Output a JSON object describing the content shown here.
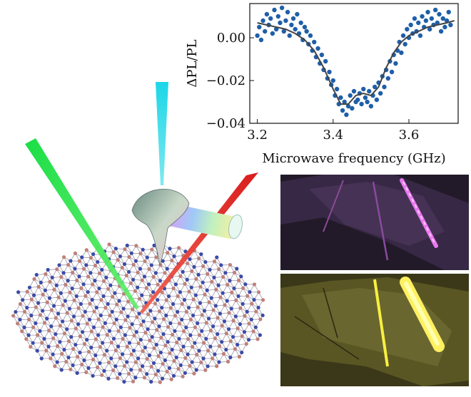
{
  "chart_data": {
    "type": "scatter",
    "xlabel": "Microwave frequency (GHz)",
    "ylabel": "ΔPL/PL",
    "xlim": [
      3.18,
      3.73
    ],
    "ylim": [
      -0.04,
      0.016
    ],
    "x_ticks": [
      3.2,
      3.4,
      3.6
    ],
    "x_tick_labels": [
      "3.2",
      "3.4",
      "3.6"
    ],
    "y_ticks": [
      0.0,
      -0.02,
      -0.04
    ],
    "y_tick_labels": [
      "0.00",
      "−0.02",
      "−0.04"
    ],
    "grid": false,
    "series": [
      {
        "kind": "points",
        "color": "#1f5fa8",
        "x": [
          3.2,
          3.205,
          3.21,
          3.215,
          3.22,
          3.225,
          3.23,
          3.235,
          3.24,
          3.245,
          3.25,
          3.255,
          3.26,
          3.265,
          3.27,
          3.275,
          3.28,
          3.285,
          3.29,
          3.295,
          3.3,
          3.305,
          3.31,
          3.315,
          3.32,
          3.325,
          3.33,
          3.335,
          3.34,
          3.345,
          3.35,
          3.355,
          3.36,
          3.365,
          3.37,
          3.375,
          3.38,
          3.385,
          3.39,
          3.395,
          3.4,
          3.405,
          3.41,
          3.415,
          3.42,
          3.425,
          3.43,
          3.435,
          3.44,
          3.445,
          3.45,
          3.455,
          3.46,
          3.465,
          3.47,
          3.475,
          3.48,
          3.485,
          3.49,
          3.495,
          3.5,
          3.505,
          3.51,
          3.515,
          3.52,
          3.525,
          3.53,
          3.535,
          3.54,
          3.545,
          3.55,
          3.555,
          3.56,
          3.565,
          3.57,
          3.575,
          3.58,
          3.585,
          3.59,
          3.595,
          3.6,
          3.605,
          3.61,
          3.615,
          3.62,
          3.625,
          3.63,
          3.635,
          3.64,
          3.645,
          3.65,
          3.655,
          3.66,
          3.665,
          3.67,
          3.675,
          3.68,
          3.685,
          3.69,
          3.695,
          3.7,
          3.705,
          3.71
        ],
        "y": [
          0.001,
          0.005,
          -0.001,
          0.008,
          0.003,
          0.011,
          0.006,
          0.009,
          0.002,
          0.013,
          0.004,
          0.01,
          0.007,
          0.014,
          0.003,
          0.008,
          0.012,
          0.001,
          0.006,
          0.009,
          0.004,
          0.011,
          0.002,
          0.007,
          -0.001,
          0.005,
          0.003,
          -0.003,
          0.001,
          -0.006,
          -0.002,
          -0.009,
          -0.005,
          -0.012,
          -0.008,
          -0.015,
          -0.011,
          -0.019,
          -0.016,
          -0.022,
          -0.02,
          -0.027,
          -0.024,
          -0.031,
          -0.028,
          -0.034,
          -0.03,
          -0.036,
          -0.032,
          -0.027,
          -0.033,
          -0.025,
          -0.03,
          -0.029,
          -0.026,
          -0.031,
          -0.024,
          -0.028,
          -0.03,
          -0.025,
          -0.032,
          -0.027,
          -0.023,
          -0.029,
          -0.021,
          -0.026,
          -0.018,
          -0.023,
          -0.015,
          -0.019,
          -0.011,
          -0.016,
          -0.008,
          -0.012,
          -0.006,
          -0.002,
          -0.007,
          0.001,
          -0.003,
          0.004,
          0.0,
          0.006,
          0.002,
          0.009,
          0.003,
          0.007,
          0.001,
          0.01,
          0.005,
          0.008,
          0.012,
          0.004,
          0.009,
          0.006,
          0.013,
          0.007,
          0.011,
          0.003,
          0.009,
          0.005,
          0.008,
          0.012,
          0.006
        ]
      },
      {
        "kind": "fit",
        "color": "#444444",
        "x": [
          3.2,
          3.225,
          3.25,
          3.275,
          3.3,
          3.325,
          3.35,
          3.375,
          3.4,
          3.42,
          3.44,
          3.46,
          3.48,
          3.5,
          3.52,
          3.54,
          3.56,
          3.58,
          3.6,
          3.625,
          3.65,
          3.675,
          3.7,
          3.72
        ],
        "y": [
          0.007,
          0.006,
          0.005,
          0.004,
          0.002,
          -0.001,
          -0.006,
          -0.014,
          -0.024,
          -0.031,
          -0.031,
          -0.027,
          -0.026,
          -0.027,
          -0.023,
          -0.014,
          -0.007,
          -0.002,
          0.001,
          0.003,
          0.005,
          0.006,
          0.007,
          0.008
        ]
      }
    ]
  },
  "colors": {
    "green_beam": "#2ee05a",
    "cyan_beam": "#2fd8e8",
    "red_beam": "#e0201a",
    "atom_blue": "#3b4aa8",
    "atom_pink": "#c08078",
    "magenta_stripe": "#e070e8",
    "yellow_stripe": "#f2e83a"
  }
}
